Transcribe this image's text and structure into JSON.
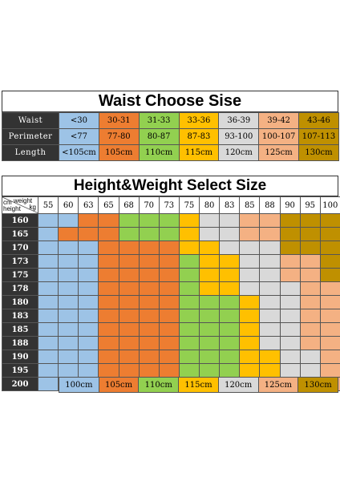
{
  "waist_chart": {
    "title": "Waist Choose Sise",
    "rows": [
      {
        "label": "Waist",
        "values": [
          "<30",
          "30-31",
          "31-33",
          "33-36",
          "36-39",
          "39-42",
          "43-46"
        ]
      },
      {
        "label": "Perimeter",
        "values": [
          "<77",
          "77-80",
          "80-87",
          "87-83",
          "93-100",
          "100-107",
          "107-113"
        ]
      },
      {
        "label": "Length",
        "values": [
          "<105cm",
          "105cm",
          "110cm",
          "115cm",
          "120cm",
          "125cm",
          "130cm"
        ]
      }
    ],
    "colors": [
      "#9dc3e6",
      "#ed7d31",
      "#92d050",
      "#ffc000",
      "#d9d9d9",
      "#f4b183",
      "#bf9000"
    ]
  },
  "height_weight_chart": {
    "title": "Height&Weight Select Size",
    "corner": {
      "weight": "weight",
      "kg": "kg",
      "cm": "cm",
      "height": "height"
    },
    "weights": [
      "55",
      "60",
      "63",
      "65",
      "68",
      "70",
      "73",
      "75",
      "80",
      "83",
      "85",
      "88",
      "90",
      "95",
      "100"
    ],
    "heights": [
      "160",
      "165",
      "170",
      "173",
      "175",
      "178",
      "180",
      "183",
      "185",
      "188",
      "190",
      "195",
      "200"
    ],
    "grid": [
      [
        0,
        0,
        1,
        1,
        2,
        2,
        2,
        3,
        4,
        4,
        5,
        5,
        6,
        6,
        6
      ],
      [
        0,
        1,
        1,
        1,
        2,
        2,
        2,
        3,
        4,
        4,
        5,
        5,
        6,
        6,
        6
      ],
      [
        0,
        0,
        0,
        1,
        1,
        1,
        1,
        3,
        3,
        4,
        4,
        4,
        6,
        6,
        6
      ],
      [
        0,
        0,
        0,
        1,
        1,
        1,
        1,
        2,
        3,
        3,
        4,
        4,
        5,
        5,
        6
      ],
      [
        0,
        0,
        0,
        1,
        1,
        1,
        1,
        2,
        3,
        3,
        4,
        4,
        5,
        5,
        6
      ],
      [
        0,
        0,
        0,
        1,
        1,
        1,
        1,
        2,
        3,
        3,
        4,
        4,
        4,
        5,
        5
      ],
      [
        0,
        0,
        0,
        1,
        1,
        1,
        1,
        2,
        2,
        2,
        3,
        4,
        4,
        5,
        5
      ],
      [
        0,
        0,
        0,
        1,
        1,
        1,
        1,
        2,
        2,
        2,
        3,
        4,
        4,
        5,
        5
      ],
      [
        0,
        0,
        0,
        1,
        1,
        1,
        1,
        2,
        2,
        2,
        3,
        4,
        4,
        5,
        5
      ],
      [
        0,
        0,
        0,
        1,
        1,
        1,
        1,
        2,
        2,
        2,
        3,
        4,
        4,
        5,
        5
      ],
      [
        0,
        0,
        0,
        1,
        1,
        1,
        1,
        2,
        2,
        2,
        3,
        3,
        4,
        4,
        5
      ],
      [
        0,
        0,
        0,
        1,
        1,
        1,
        1,
        2,
        2,
        2,
        3,
        3,
        4,
        4,
        5
      ],
      [
        0,
        0,
        0,
        1,
        1,
        1,
        1,
        2,
        2,
        2,
        3,
        3,
        4,
        4,
        5
      ]
    ]
  },
  "legend": {
    "labels": [
      "100cm",
      "105cm",
      "110cm",
      "115cm",
      "120cm",
      "125cm",
      "130cm"
    ]
  }
}
